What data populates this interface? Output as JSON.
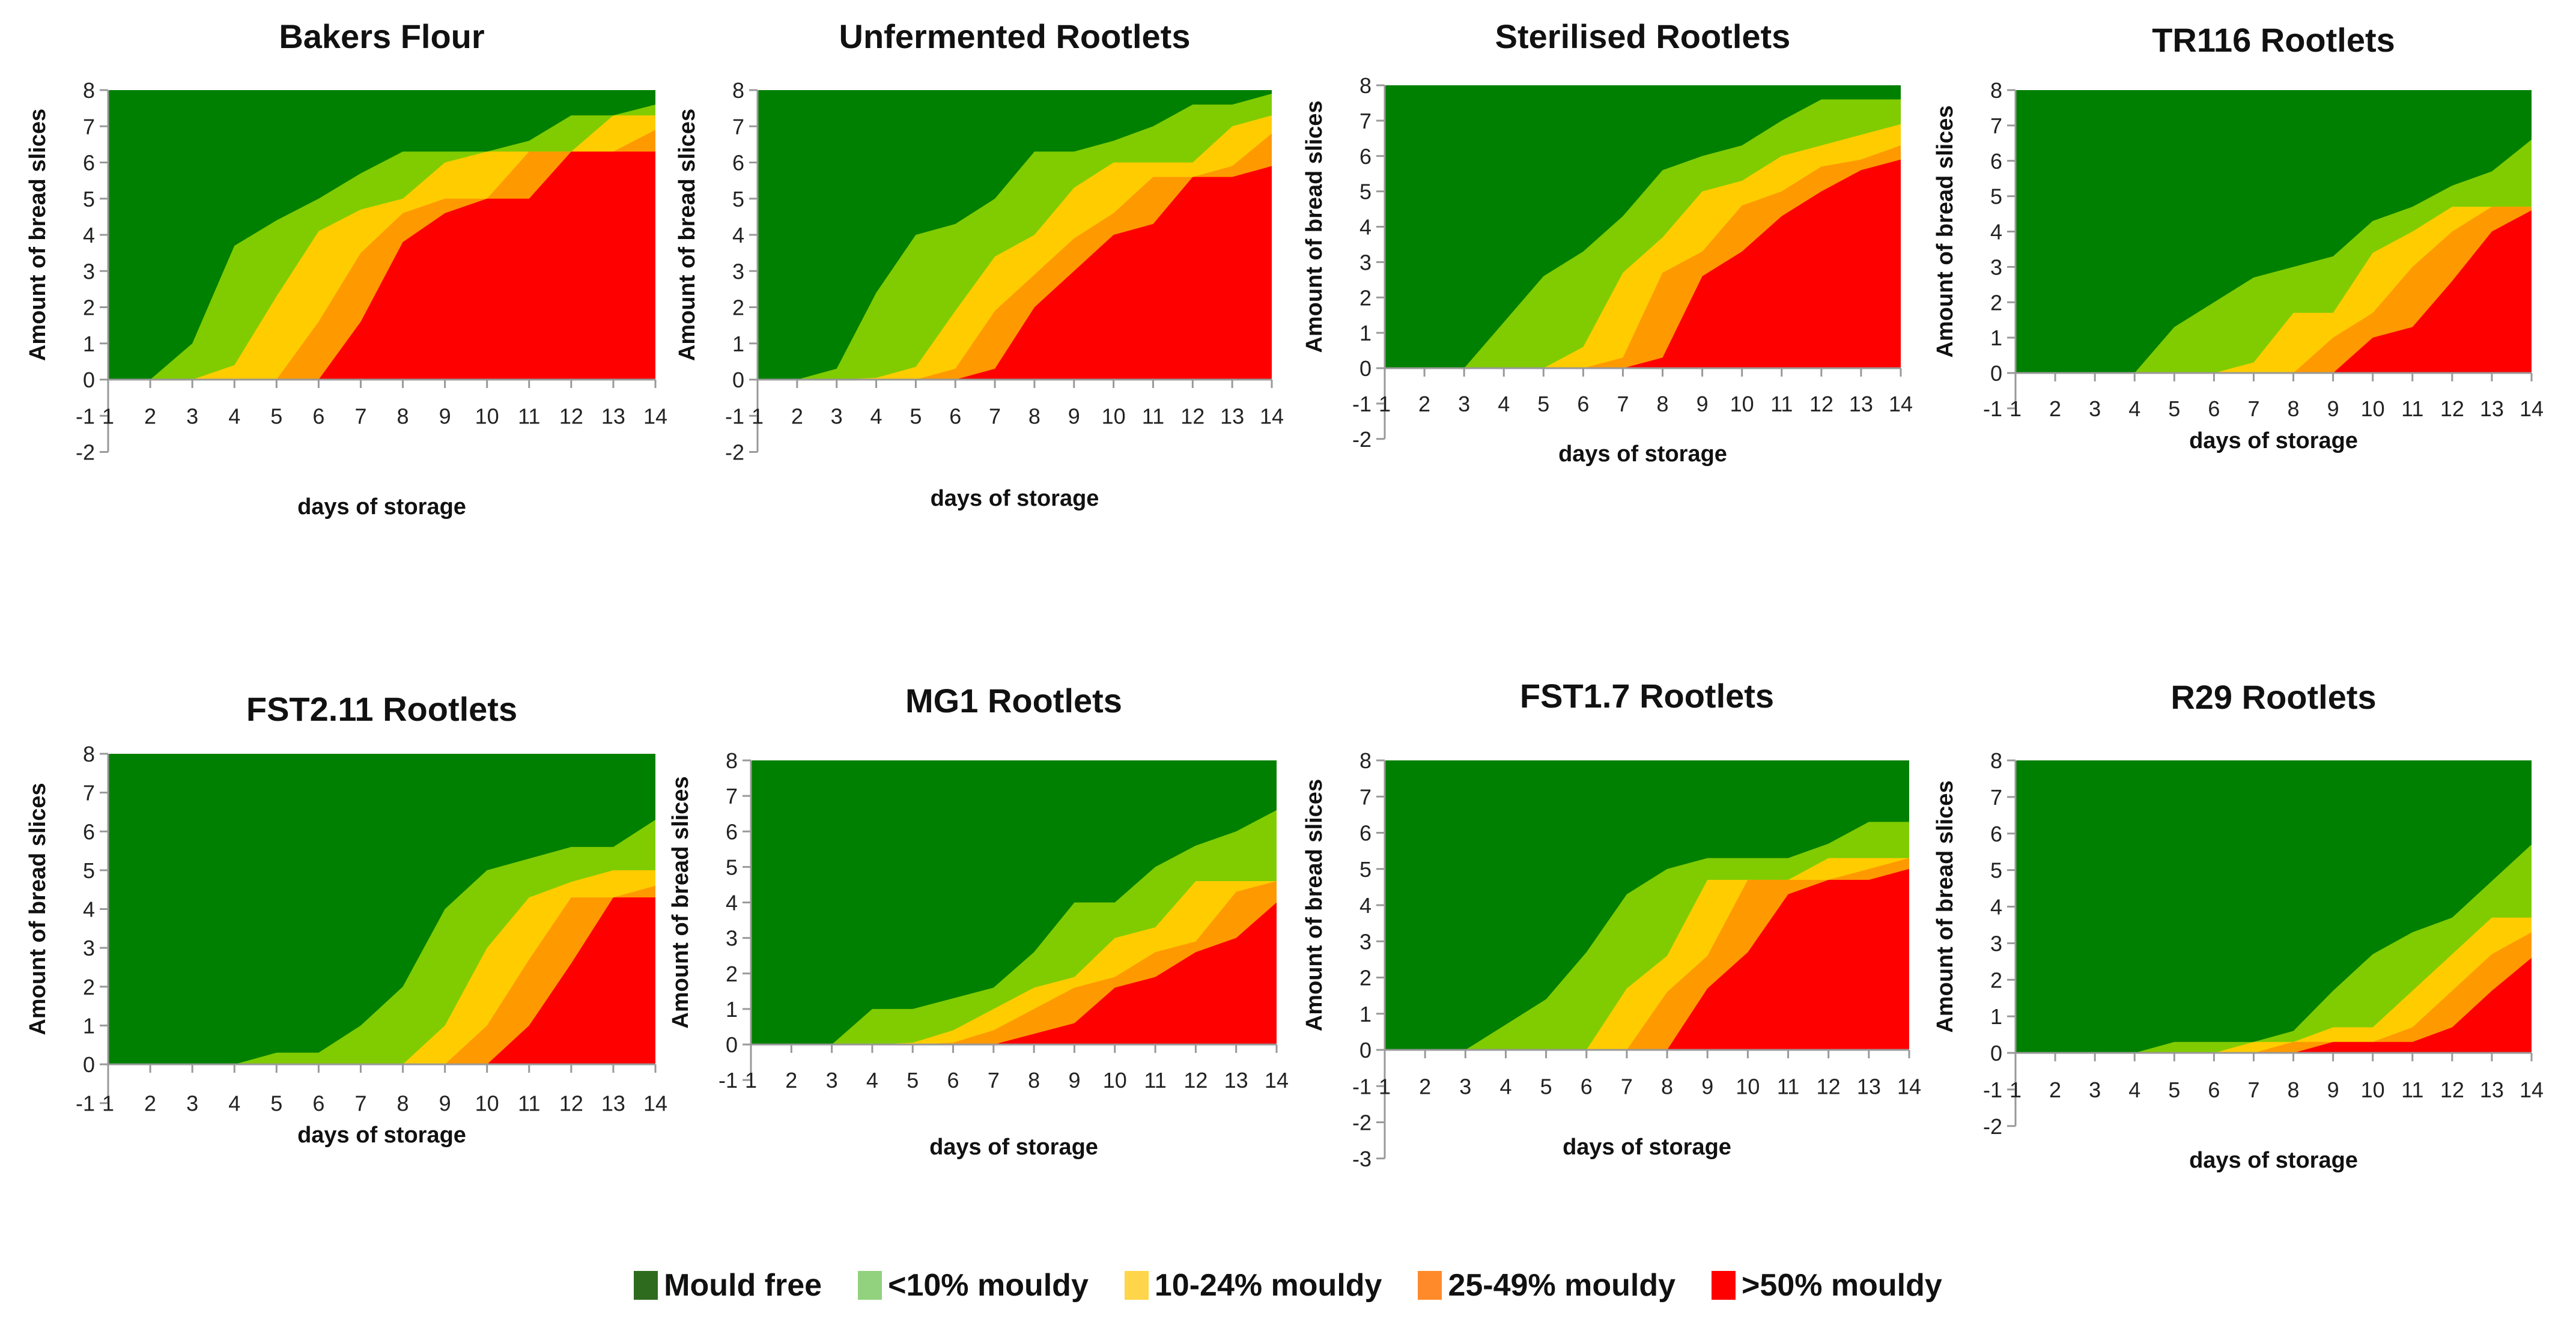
{
  "legend": [
    {
      "label": "Mould free",
      "color": "#2e6b1f"
    },
    {
      "label": "<10% mouldy",
      "color": "#92d17e"
    },
    {
      "label": "10-24% mouldy",
      "color": "#ffd54a"
    },
    {
      "label": "25-49% mouldy",
      "color": "#ff8a2a"
    },
    {
      "label": ">50% mouldy",
      "color": "#ff0000"
    }
  ],
  "chart_data": [
    {
      "type": "area",
      "stacking": "cumulative tops",
      "title": "Bakers Flour",
      "xlabel": "days of storage",
      "ylabel": "Amount of bread slices",
      "ylim": [
        -2,
        8
      ],
      "x": [
        1,
        2,
        3,
        4,
        5,
        6,
        7,
        8,
        9,
        10,
        11,
        12,
        13,
        14
      ],
      "series": [
        {
          "name": ">50% mouldy",
          "color": "#ff0000",
          "top": [
            0,
            0,
            0,
            0,
            0,
            0,
            1.6,
            3.8,
            4.6,
            5,
            5,
            6.3,
            6.3,
            6.3
          ]
        },
        {
          "name": "25-49% mouldy",
          "color": "#ff9900",
          "top": [
            0,
            0,
            0,
            0,
            0,
            1.6,
            3.5,
            4.6,
            5,
            5,
            6.3,
            6.3,
            6.3,
            6.9
          ]
        },
        {
          "name": "10-24% mouldy",
          "color": "#ffcc00",
          "top": [
            0,
            0,
            0,
            0.4,
            2.3,
            4.1,
            4.7,
            5,
            6,
            6.3,
            6.3,
            6.3,
            7.3,
            7.3
          ]
        },
        {
          "name": "<10% mouldy",
          "color": "#80cc00",
          "top": [
            0,
            0,
            1,
            3.7,
            4.4,
            5,
            5.7,
            6.3,
            6.3,
            6.3,
            6.6,
            7.3,
            7.3,
            7.6
          ]
        },
        {
          "name": "Mould free",
          "color": "#008000",
          "top": [
            8,
            8,
            8,
            8,
            8,
            8,
            8,
            8,
            8,
            8,
            8,
            8,
            8,
            8
          ]
        }
      ]
    },
    {
      "type": "area",
      "stacking": "cumulative tops",
      "title": "Unfermented Rootlets",
      "xlabel": "days of storage",
      "ylabel": "Amount of bread slices",
      "ylim": [
        -2,
        8
      ],
      "x": [
        1,
        2,
        3,
        4,
        5,
        6,
        7,
        8,
        9,
        10,
        11,
        12,
        13,
        14
      ],
      "series": [
        {
          "name": ">50% mouldy",
          "color": "#ff0000",
          "top": [
            0,
            0,
            0,
            0,
            0,
            0,
            0.3,
            2,
            3,
            4,
            4.3,
            5.6,
            5.6,
            5.9
          ]
        },
        {
          "name": "25-49% mouldy",
          "color": "#ff9900",
          "top": [
            0,
            0,
            0,
            0,
            0,
            0.3,
            1.9,
            2.9,
            3.9,
            4.6,
            5.6,
            5.6,
            5.9,
            6.8
          ]
        },
        {
          "name": "10-24% mouldy",
          "color": "#ffcc00",
          "top": [
            0,
            0,
            0,
            0.05,
            0.35,
            1.9,
            3.4,
            4,
            5.3,
            6,
            6,
            6,
            7,
            7.3
          ]
        },
        {
          "name": "<10% mouldy",
          "color": "#80cc00",
          "top": [
            0,
            0,
            0.3,
            2.4,
            4,
            4.3,
            5,
            6.3,
            6.3,
            6.6,
            7,
            7.6,
            7.6,
            7.9
          ]
        },
        {
          "name": "Mould free",
          "color": "#008000",
          "top": [
            8,
            8,
            8,
            8,
            8,
            8,
            8,
            8,
            8,
            8,
            8,
            8,
            8,
            8
          ]
        }
      ]
    },
    {
      "type": "area",
      "stacking": "cumulative tops",
      "title": "Sterilised Rootlets",
      "xlabel": "days of storage",
      "ylabel": "Amount of bread slices",
      "ylim": [
        -2,
        8
      ],
      "x": [
        1,
        2,
        3,
        4,
        5,
        6,
        7,
        8,
        9,
        10,
        11,
        12,
        13,
        14
      ],
      "series": [
        {
          "name": ">50% mouldy",
          "color": "#ff0000",
          "top": [
            0,
            0,
            0,
            0,
            0,
            0,
            0,
            0.3,
            2.6,
            3.3,
            4.3,
            5,
            5.6,
            5.9
          ]
        },
        {
          "name": "25-49% mouldy",
          "color": "#ff9900",
          "top": [
            0,
            0,
            0,
            0,
            0,
            0,
            0.3,
            2.7,
            3.3,
            4.6,
            5,
            5.7,
            5.9,
            6.3
          ]
        },
        {
          "name": "10-24% mouldy",
          "color": "#ffcc00",
          "top": [
            0,
            0,
            0,
            0,
            0,
            0.6,
            2.7,
            3.7,
            5,
            5.3,
            6,
            6.3,
            6.6,
            6.9
          ]
        },
        {
          "name": "<10% mouldy",
          "color": "#80cc00",
          "top": [
            0,
            0,
            0,
            1.3,
            2.6,
            3.3,
            4.3,
            5.6,
            6,
            6.3,
            7,
            7.6,
            7.6,
            7.6
          ]
        },
        {
          "name": "Mould free",
          "color": "#008000",
          "top": [
            8,
            8,
            8,
            8,
            8,
            8,
            8,
            8,
            8,
            8,
            8,
            8,
            8,
            8
          ]
        }
      ]
    },
    {
      "type": "area",
      "stacking": "cumulative tops",
      "title": "TR116 Rootlets",
      "xlabel": "days of storage",
      "ylabel": "Amount of bread slices",
      "ylim": [
        -1,
        8
      ],
      "x": [
        1,
        2,
        3,
        4,
        5,
        6,
        7,
        8,
        9,
        10,
        11,
        12,
        13,
        14
      ],
      "series": [
        {
          "name": ">50% mouldy",
          "color": "#ff0000",
          "top": [
            0,
            0,
            0,
            0,
            0,
            0,
            0,
            0,
            0,
            1,
            1.3,
            2.6,
            4,
            4.6
          ]
        },
        {
          "name": "25-49% mouldy",
          "color": "#ff9900",
          "top": [
            0,
            0,
            0,
            0,
            0,
            0,
            0,
            0,
            1,
            1.7,
            3,
            4,
            4.7,
            4.7
          ]
        },
        {
          "name": "10-24% mouldy",
          "color": "#ffcc00",
          "top": [
            0,
            0,
            0,
            0,
            0,
            0,
            0.3,
            1.7,
            1.7,
            3.4,
            4,
            4.7,
            4.7,
            4.7
          ]
        },
        {
          "name": "<10% mouldy",
          "color": "#80cc00",
          "top": [
            0,
            0,
            0,
            0,
            1.3,
            2,
            2.7,
            3,
            3.3,
            4.3,
            4.7,
            5.3,
            5.7,
            6.6
          ]
        },
        {
          "name": "Mould free",
          "color": "#008000",
          "top": [
            8,
            8,
            8,
            8,
            8,
            8,
            8,
            8,
            8,
            8,
            8,
            8,
            8,
            8
          ]
        }
      ]
    },
    {
      "type": "area",
      "stacking": "cumulative tops",
      "title": "FST2.11 Rootlets",
      "xlabel": "days of storage",
      "ylabel": "Amount of bread slices",
      "ylim": [
        -1,
        8
      ],
      "x": [
        1,
        2,
        3,
        4,
        5,
        6,
        7,
        8,
        9,
        10,
        11,
        12,
        13,
        14
      ],
      "series": [
        {
          "name": ">50% mouldy",
          "color": "#ff0000",
          "top": [
            0,
            0,
            0,
            0,
            0,
            0,
            0,
            0,
            0,
            0,
            1,
            2.6,
            4.3,
            4.3
          ]
        },
        {
          "name": "25-49% mouldy",
          "color": "#ff9900",
          "top": [
            0,
            0,
            0,
            0,
            0,
            0,
            0,
            0,
            0,
            1,
            2.7,
            4.3,
            4.3,
            4.6
          ]
        },
        {
          "name": "10-24% mouldy",
          "color": "#ffcc00",
          "top": [
            0,
            0,
            0,
            0,
            0,
            0,
            0,
            0,
            1,
            3,
            4.3,
            4.7,
            5,
            5
          ]
        },
        {
          "name": "<10% mouldy",
          "color": "#80cc00",
          "top": [
            0,
            0,
            0,
            0,
            0.3,
            0.3,
            1,
            2,
            4,
            5,
            5.3,
            5.6,
            5.6,
            6.3
          ]
        },
        {
          "name": "Mould free",
          "color": "#008000",
          "top": [
            8,
            8,
            8,
            8,
            8,
            8,
            8,
            8,
            8,
            8,
            8,
            8,
            8,
            8
          ]
        }
      ]
    },
    {
      "type": "area",
      "stacking": "cumulative tops",
      "title": "MG1 Rootlets",
      "xlabel": "days of storage",
      "ylabel": "Amount of bread slices",
      "ylim": [
        -1,
        8
      ],
      "x": [
        1,
        2,
        3,
        4,
        5,
        6,
        7,
        8,
        9,
        10,
        11,
        12,
        13,
        14
      ],
      "series": [
        {
          "name": ">50% mouldy",
          "color": "#ff0000",
          "top": [
            0,
            0,
            0,
            0,
            0,
            0,
            0,
            0.3,
            0.6,
            1.6,
            1.9,
            2.6,
            3,
            4
          ]
        },
        {
          "name": "25-49% mouldy",
          "color": "#ff9900",
          "top": [
            0,
            0,
            0,
            0,
            0,
            0.05,
            0.4,
            1,
            1.6,
            1.9,
            2.6,
            2.9,
            4.3,
            4.6
          ]
        },
        {
          "name": "10-24% mouldy",
          "color": "#ffcc00",
          "top": [
            0,
            0,
            0,
            0,
            0.05,
            0.4,
            1,
            1.6,
            1.9,
            3,
            3.3,
            4.6,
            4.6,
            4.6
          ]
        },
        {
          "name": "<10% mouldy",
          "color": "#80cc00",
          "top": [
            0,
            0,
            0,
            1,
            1,
            1.3,
            1.6,
            2.6,
            4,
            4,
            5,
            5.6,
            6,
            6.6
          ]
        },
        {
          "name": "Mould free",
          "color": "#008000",
          "top": [
            8,
            8,
            8,
            8,
            8,
            8,
            8,
            8,
            8,
            8,
            8,
            8,
            8,
            8
          ]
        }
      ]
    },
    {
      "type": "area",
      "stacking": "cumulative tops",
      "title": "FST1.7 Rootlets",
      "xlabel": "days of storage",
      "ylabel": "Amount of bread slices",
      "ylim": [
        -3,
        8
      ],
      "x": [
        1,
        2,
        3,
        4,
        5,
        6,
        7,
        8,
        9,
        10,
        11,
        12,
        13,
        14
      ],
      "series": [
        {
          "name": ">50% mouldy",
          "color": "#ff0000",
          "top": [
            0,
            0,
            0,
            0,
            0,
            0,
            0,
            0,
            1.7,
            2.7,
            4.3,
            4.7,
            4.7,
            5
          ]
        },
        {
          "name": "25-49% mouldy",
          "color": "#ff9900",
          "top": [
            0,
            0,
            0,
            0,
            0,
            0,
            0,
            1.6,
            2.6,
            4.7,
            4.7,
            4.7,
            5,
            5.3
          ]
        },
        {
          "name": "10-24% mouldy",
          "color": "#ffcc00",
          "top": [
            0,
            0,
            0,
            0,
            0,
            0,
            1.7,
            2.6,
            4.7,
            4.7,
            4.7,
            5.3,
            5.3,
            5.3
          ]
        },
        {
          "name": "<10% mouldy",
          "color": "#80cc00",
          "top": [
            0,
            0,
            0,
            0.7,
            1.4,
            2.7,
            4.3,
            5,
            5.3,
            5.3,
            5.3,
            5.7,
            6.3,
            6.3
          ]
        },
        {
          "name": "Mould free",
          "color": "#008000",
          "top": [
            8,
            8,
            8,
            8,
            8,
            8,
            8,
            8,
            8,
            8,
            8,
            8,
            8,
            8
          ]
        }
      ]
    },
    {
      "type": "area",
      "stacking": "cumulative tops",
      "title": "R29 Rootlets",
      "xlabel": "days of storage",
      "ylabel": "Amount of bread slices",
      "ylim": [
        -2,
        8
      ],
      "x": [
        1,
        2,
        3,
        4,
        5,
        6,
        7,
        8,
        9,
        10,
        11,
        12,
        13,
        14
      ],
      "series": [
        {
          "name": ">50% mouldy",
          "color": "#ff0000",
          "top": [
            0,
            0,
            0,
            0,
            0,
            0,
            0,
            0,
            0.3,
            0.3,
            0.3,
            0.7,
            1.7,
            2.6
          ]
        },
        {
          "name": "25-49% mouldy",
          "color": "#ff9900",
          "top": [
            0,
            0,
            0,
            0,
            0,
            0,
            0,
            0.3,
            0.3,
            0.3,
            0.7,
            1.7,
            2.7,
            3.3
          ]
        },
        {
          "name": "10-24% mouldy",
          "color": "#ffcc00",
          "top": [
            0,
            0,
            0,
            0,
            0,
            0,
            0.3,
            0.3,
            0.7,
            0.7,
            1.7,
            2.7,
            3.7,
            3.7
          ]
        },
        {
          "name": "<10% mouldy",
          "color": "#80cc00",
          "top": [
            0,
            0,
            0,
            0,
            0.3,
            0.3,
            0.3,
            0.6,
            1.7,
            2.7,
            3.3,
            3.7,
            4.7,
            5.7
          ]
        },
        {
          "name": "Mould free",
          "color": "#008000",
          "top": [
            8,
            8,
            8,
            8,
            8,
            8,
            8,
            8,
            8,
            8,
            8,
            8,
            8,
            8
          ]
        }
      ]
    }
  ]
}
